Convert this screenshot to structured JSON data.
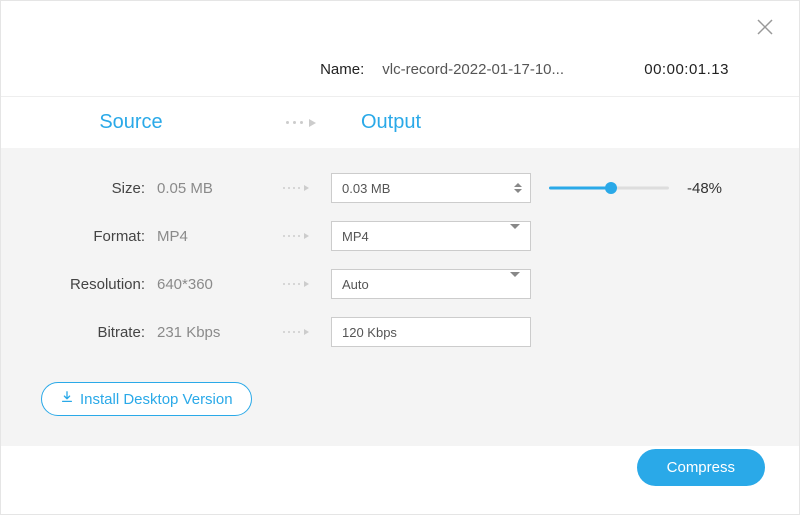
{
  "colors": {
    "accent": "#2aa9e8",
    "panel_bg": "#f4f4f4",
    "border": "#cccccc",
    "text_muted": "#8a8a8a",
    "divider": "#eeeeee"
  },
  "header": {
    "name_label": "Name:",
    "filename": "vlc-record-2022-01-17-10...",
    "duration": "00:00:01.13"
  },
  "columns": {
    "source_title": "Source",
    "output_title": "Output"
  },
  "size": {
    "label": "Size:",
    "source_value": "0.05 MB",
    "output_value": "0.03 MB",
    "slider_percent": 52,
    "percent_text": "-48%"
  },
  "format": {
    "label": "Format:",
    "source_value": "MP4",
    "output_value": "MP4"
  },
  "resolution": {
    "label": "Resolution:",
    "source_value": "640*360",
    "output_value": "Auto"
  },
  "bitrate": {
    "label": "Bitrate:",
    "source_value": "231 Kbps",
    "output_value": "120 Kbps"
  },
  "buttons": {
    "install_desktop": "Install Desktop Version",
    "compress": "Compress"
  }
}
